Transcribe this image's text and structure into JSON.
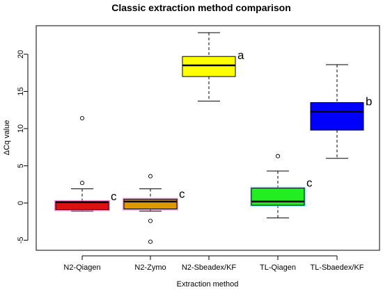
{
  "chart_data": {
    "type": "box",
    "title": "Classic extraction method comparison",
    "xlabel": "Extraction method",
    "ylabel": "ΔCq value",
    "ylim": [
      -6,
      25
    ],
    "yticks": [
      "-5",
      "0",
      "5",
      "10",
      "15",
      "20"
    ],
    "grid": false,
    "categories": [
      "N2-Qiagen",
      "N2-Zymo",
      "N2-Sbeadex/KF",
      "TL-Qiagen",
      "TL-Sbaedex/KF"
    ],
    "boxes": [
      {
        "category": "N2-Qiagen",
        "whisker_low": -1.1,
        "q1": -0.9,
        "median": 0.1,
        "q3": 0.2,
        "whisker_high": 1.9,
        "outliers": [
          2.7,
          11.4
        ],
        "letter": "c",
        "fill": "#dd1111",
        "edge_glow": "#ff66cc"
      },
      {
        "category": "N2-Zymo",
        "whisker_low": -1.1,
        "q1": -0.8,
        "median": 0.2,
        "q3": 0.5,
        "whisker_high": 1.9,
        "outliers": [
          3.6,
          -2.4,
          -5.2
        ],
        "letter": "c",
        "fill": "#dd9900",
        "edge_glow": "#ff66cc"
      },
      {
        "category": "N2-Sbeadex/KF",
        "whisker_low": 13.7,
        "q1": 17.0,
        "median": 18.5,
        "q3": 19.7,
        "whisker_high": 22.9,
        "outliers": [],
        "letter": "a",
        "fill": "#ffff00",
        "edge_glow": ""
      },
      {
        "category": "TL-Qiagen",
        "whisker_low": -2.0,
        "q1": -0.3,
        "median": 0.2,
        "q3": 2.0,
        "whisker_high": 4.3,
        "outliers": [
          6.3
        ],
        "letter": "c",
        "fill": "#22ee22",
        "edge_glow": "#66ddff"
      },
      {
        "category": "TL-Sbaedex/KF",
        "whisker_low": 6.0,
        "q1": 9.8,
        "median": 12.3,
        "q3": 13.5,
        "whisker_high": 18.6,
        "outliers": [],
        "letter": "b",
        "fill": "#0000ff",
        "edge_glow": ""
      }
    ]
  }
}
